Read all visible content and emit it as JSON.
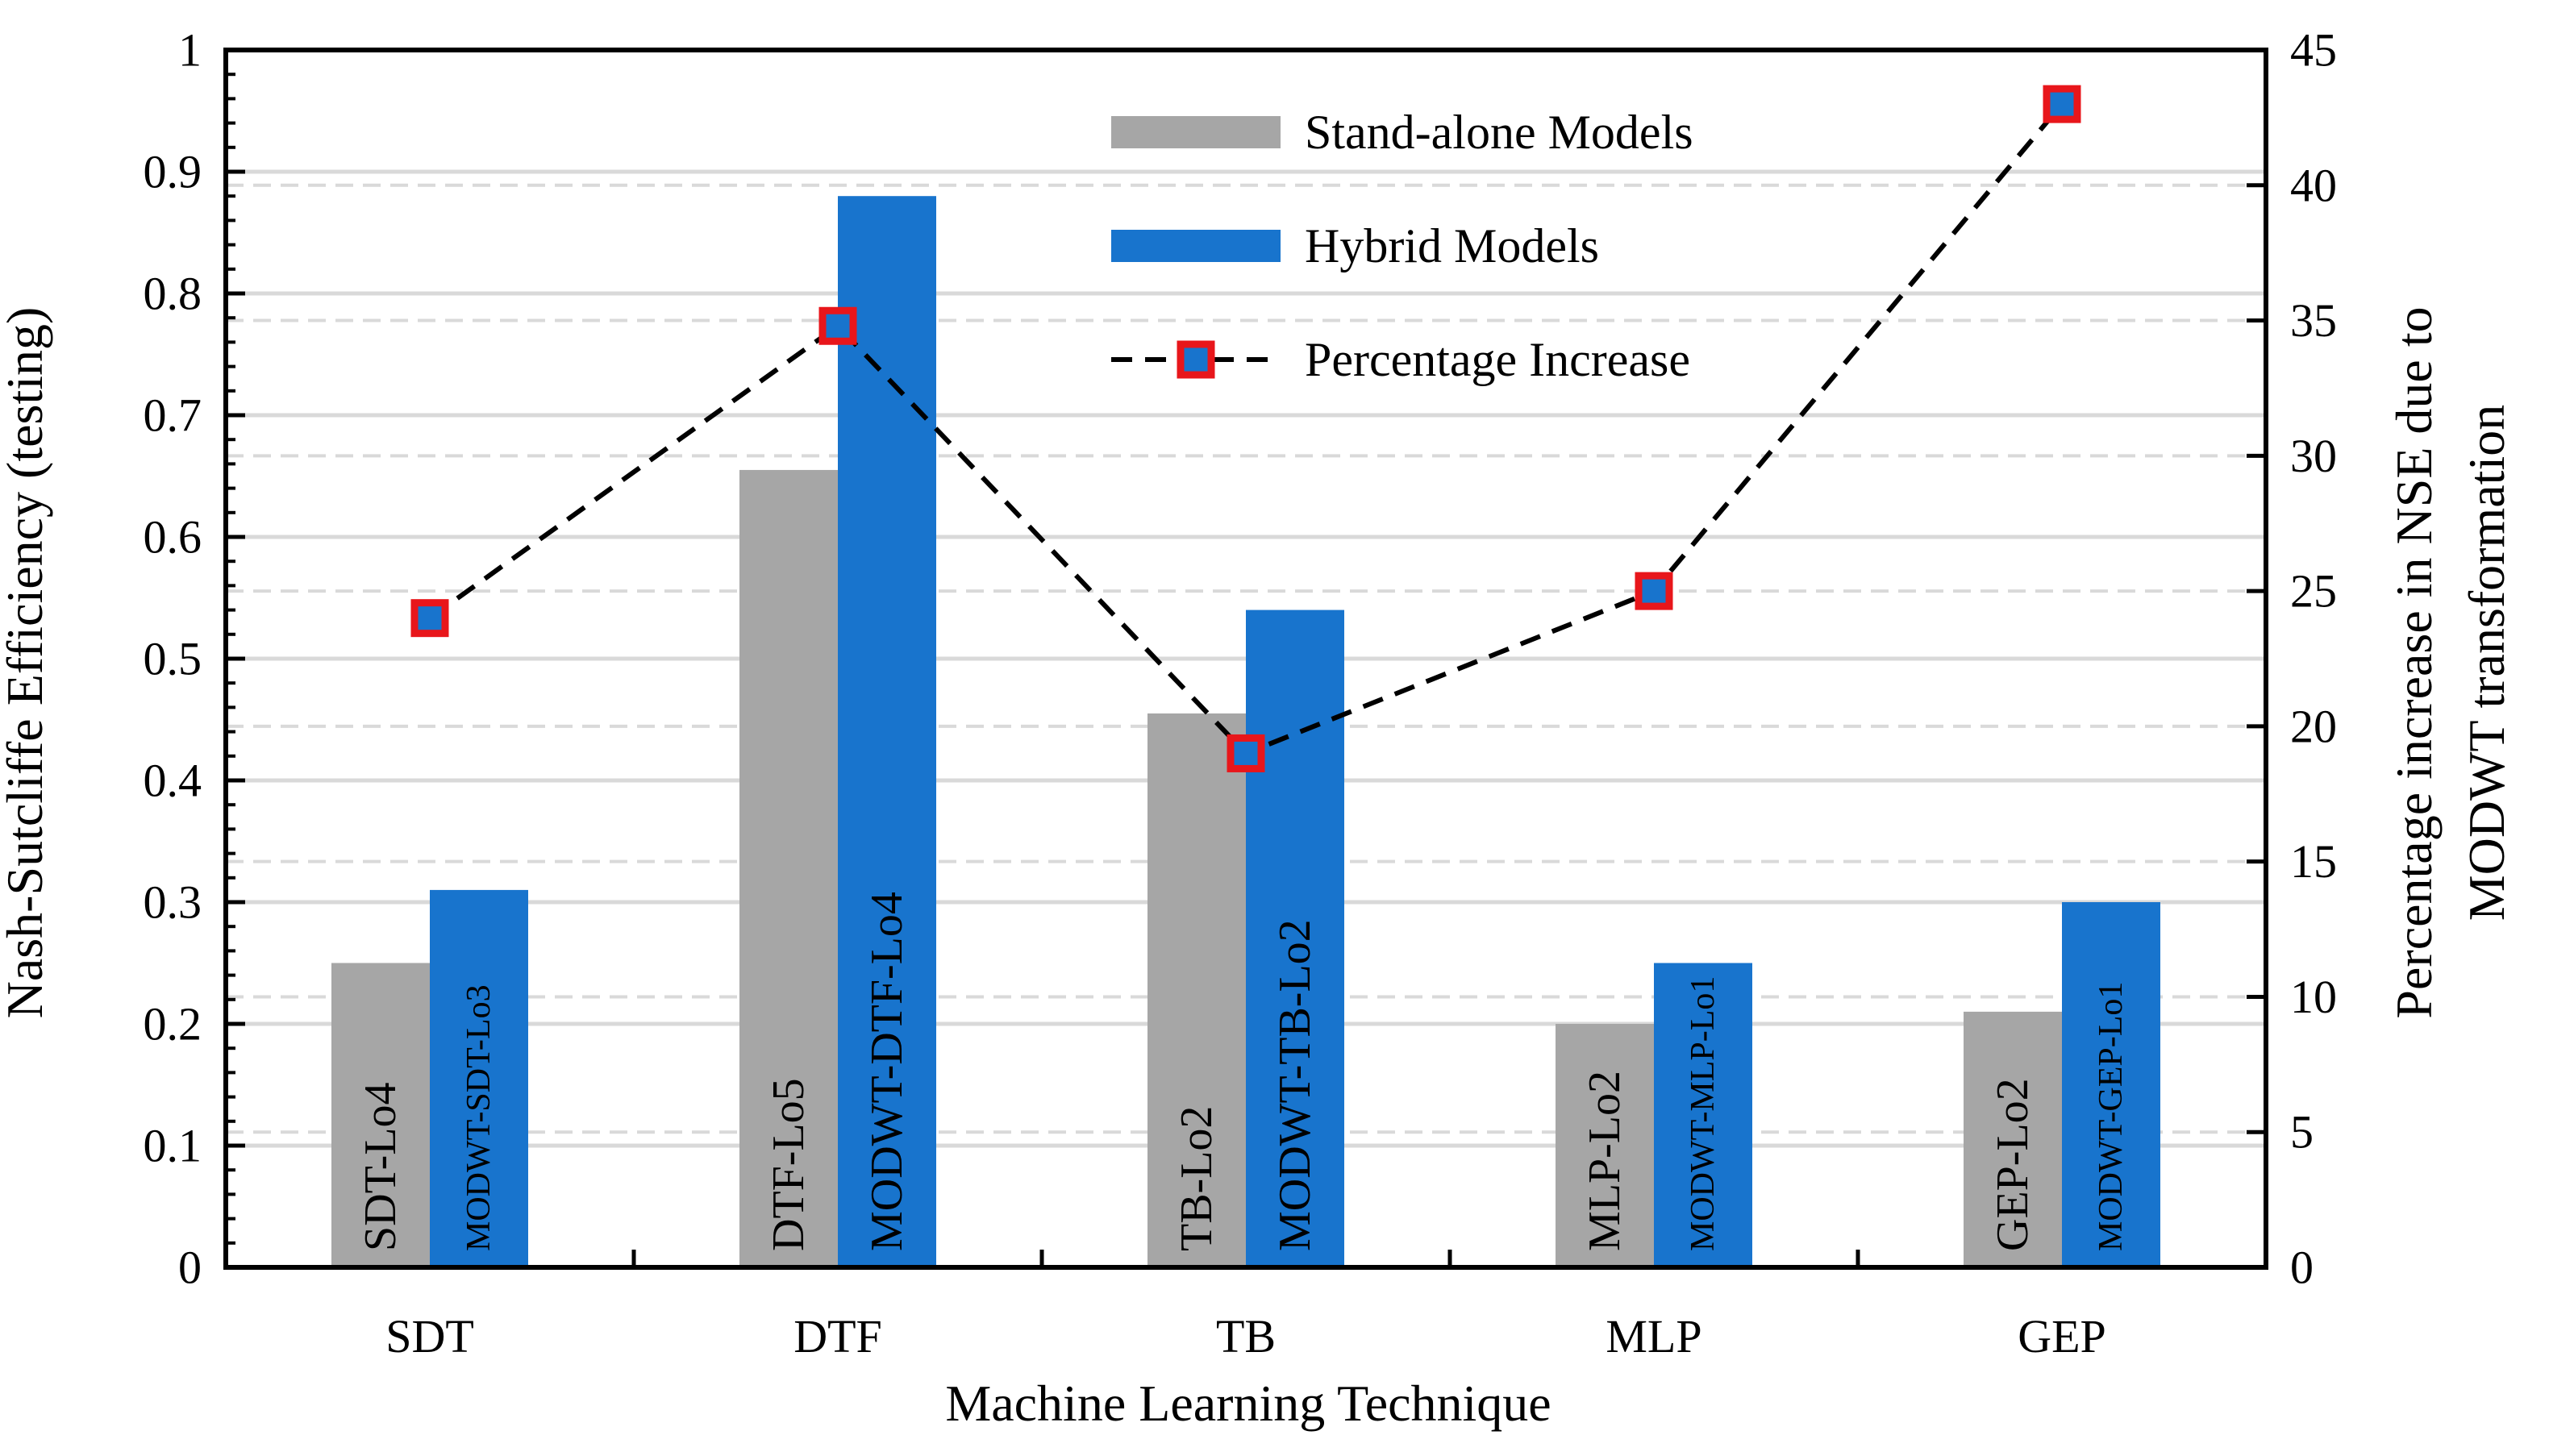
{
  "chart_data": {
    "type": "bar",
    "xlabel": "Machine Learning Technique",
    "ylabel": "Nash-Sutcliffe Efficiency (testing)",
    "y2label_line1": "Percentage increase in NSE due to",
    "y2label_line2": "MODWT transformation",
    "ylim": [
      0,
      1
    ],
    "y2lim": [
      0,
      45
    ],
    "yticks": [
      "0",
      "0.1",
      "0.2",
      "0.3",
      "0.4",
      "0.5",
      "0.6",
      "0.7",
      "0.8",
      "0.9",
      "1"
    ],
    "y2ticks": [
      "0",
      "5",
      "10",
      "15",
      "20",
      "25",
      "30",
      "35",
      "40",
      "45"
    ],
    "categories": [
      "SDT",
      "DTF",
      "TB",
      "MLP",
      "GEP"
    ],
    "series": [
      {
        "name": "Stand-alone Models",
        "color": "#a6a6a6",
        "values": [
          0.25,
          0.655,
          0.455,
          0.2,
          0.21
        ],
        "labels": [
          "SDT-Lo4",
          "DTF-Lo5",
          "TB-Lo2",
          "MLP-Lo2",
          "GEP-Lo2"
        ]
      },
      {
        "name": "Hybrid Models",
        "color": "#1874cd",
        "values": [
          0.31,
          0.88,
          0.54,
          0.25,
          0.3
        ],
        "labels": [
          "MODWT-SDT-Lo3",
          "MODWT-DTF-Lo4",
          "MODWT-TB-Lo2",
          "MODWT-MLP-Lo1",
          "MODWT-GEP-Lo1"
        ]
      },
      {
        "name": "Percentage Increase",
        "type": "line",
        "axis": "right",
        "color": "#000000",
        "marker_color": "#e8161b",
        "values": [
          24,
          34.8,
          19,
          25,
          43
        ]
      }
    ],
    "legend": "top-right",
    "grid": true
  }
}
